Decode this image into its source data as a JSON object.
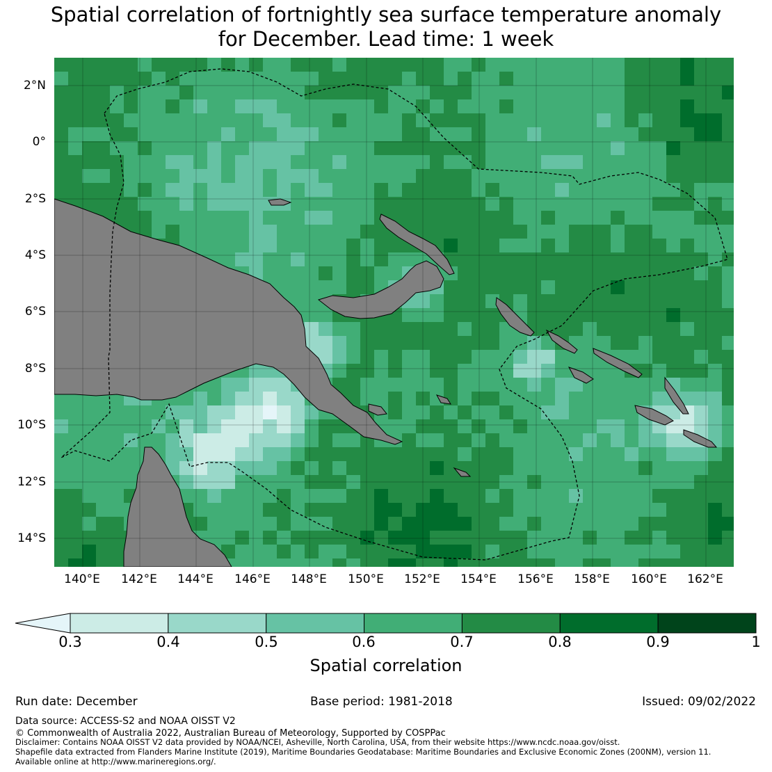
{
  "title_line1": "Spatial correlation of fortnightly sea surface temperature anomaly",
  "title_line2": "for December. Lead time: 1 week",
  "map": {
    "lat_labels": [
      "2°N",
      "0°",
      "2°S",
      "4°S",
      "6°S",
      "8°S",
      "10°S",
      "12°S",
      "14°S"
    ],
    "lon_labels": [
      "140°E",
      "142°E",
      "144°E",
      "146°E",
      "148°E",
      "150°E",
      "152°E",
      "154°E",
      "156°E",
      "158°E",
      "160°E",
      "162°E"
    ],
    "land_color": "#808080",
    "boundary_style": "dashed-black"
  },
  "colorbar": {
    "label": "Spatial correlation",
    "ticks": [
      "0.3",
      "0.4",
      "0.5",
      "0.6",
      "0.7",
      "0.8",
      "0.9",
      "1"
    ],
    "colors": [
      "#ccece6",
      "#99d8c9",
      "#66c2a4",
      "#41ae76",
      "#238b45",
      "#006d2c",
      "#00441b"
    ],
    "under_color": "#e5f5f9"
  },
  "footer": {
    "run_date": "Run date: December",
    "base_period": "Base period: 1981-2018",
    "issued": "Issued: 09/02/2022",
    "data_source": "Data source: ACCESS-S2 and NOAA OISST V2",
    "copyright": "© Commonwealth of Australia 2022, Australian Bureau of Meteorology, Supported by COSPPac",
    "disclaimer": "Disclaimer: Contains NOAA OISST V2 data provided by NOAA/NCEI, Asheville, North Carolina, USA, from their website https://www.ncdc.noaa.gov/oisst.",
    "shapefile": "Shapefile data extracted from Flanders Marine Institute (2019), Maritime Boundaries Geodatabase: Maritime Boundaries and Exclusive Economic Zones (200NM), version 11.",
    "available": "Available online at http://www.marineregions.org/."
  }
}
